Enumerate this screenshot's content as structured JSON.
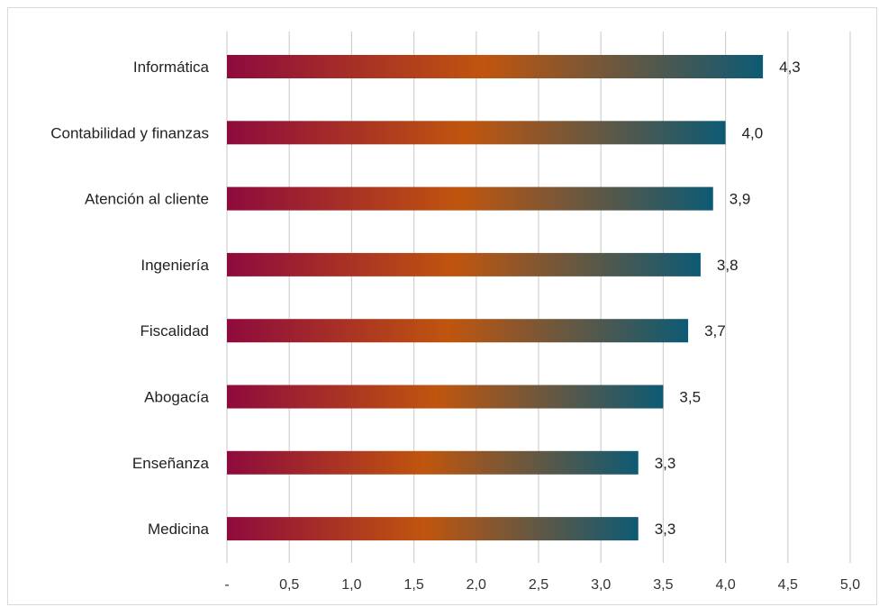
{
  "chart_data": {
    "type": "bar",
    "orientation": "horizontal",
    "categories": [
      "Informática",
      "Contabilidad y finanzas",
      "Atención al cliente",
      "Ingeniería",
      "Fiscalidad",
      "Abogacía",
      "Enseñanza",
      "Medicina"
    ],
    "values": [
      4.3,
      4.0,
      3.9,
      3.8,
      3.7,
      3.5,
      3.3,
      3.3
    ],
    "value_labels": [
      "4,3",
      "4,0",
      "3,9",
      "3,8",
      "3,7",
      "3,5",
      "3,3",
      "3,3"
    ],
    "xlim": [
      0,
      5
    ],
    "x_ticks": [
      0,
      0.5,
      1,
      1.5,
      2,
      2.5,
      3,
      3.5,
      4,
      4.5,
      5
    ],
    "x_tick_labels": [
      "-",
      "0,5",
      "1,0",
      "1,5",
      "2,0",
      "2,5",
      "3,0",
      "3,5",
      "4,0",
      "4,5",
      "5,0"
    ],
    "title": "",
    "xlabel": "",
    "ylabel": "",
    "grid": "vertical",
    "legend": "none",
    "bar_gradient": [
      "#8e0a3e",
      "#c0550e",
      "#0d5a74"
    ]
  }
}
